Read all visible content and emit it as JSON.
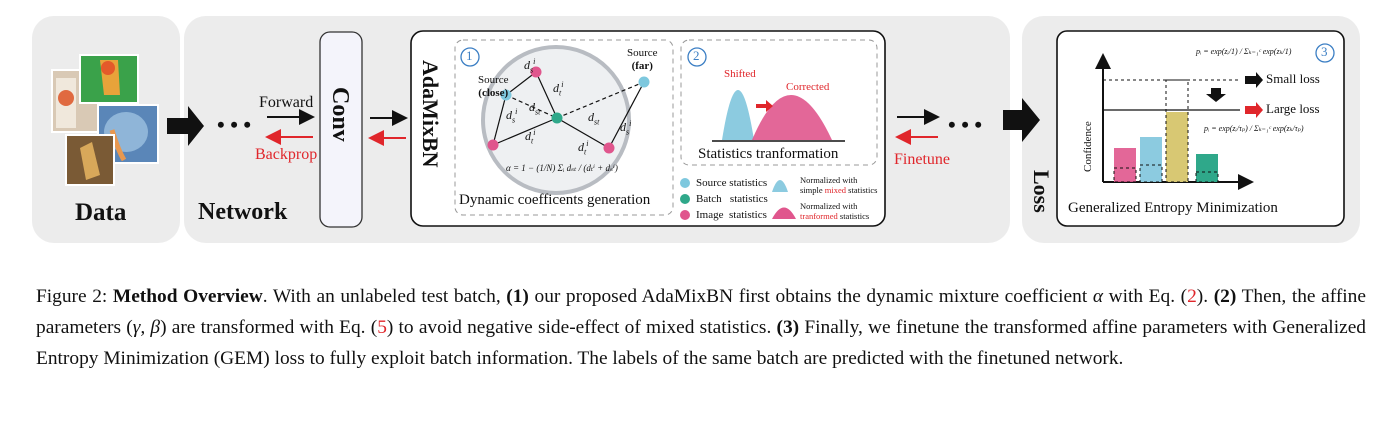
{
  "colors": {
    "panel_bg": "#ececec",
    "accent_red": "#e0262b",
    "source_blue": "#7ec8de",
    "batch_green": "#2fa88a",
    "image_pink": "#e0568d",
    "bar_yellow": "#d8c873",
    "circle_blue": "#3c7fc4"
  },
  "icons": [
    "image-stack-icon",
    "arrow-right-icon",
    "ellipsis-icon",
    "down-arrow-icon"
  ],
  "data_panel": {
    "label": "Data"
  },
  "network_panel": {
    "label": "Network",
    "forward": "Forward",
    "backprop": "Backprop",
    "conv": "Conv",
    "adamixbn": "AdaMixBN",
    "finetune": "Finetune",
    "dots": "• • •"
  },
  "dynamic": {
    "number": "1",
    "caption": "Dynamic coefficents generation",
    "source_close": [
      "Source",
      "(close)"
    ],
    "source_far": [
      "Source",
      "(far)"
    ],
    "d_s": "d",
    "d_st": "d",
    "d_t": "d",
    "formula": "α = 1 − (1/N) Σᵢ dₛₜ / (dₜⁱ + dₛⁱ)"
  },
  "statistics": {
    "number": "2",
    "shifted": "Shifted",
    "corrected": "Corrected",
    "caption": "Statistics tranformation",
    "legend": {
      "source": "Source statistics",
      "batch": "Batch   statistics",
      "image": "Image  statistics",
      "normalized_mixed": [
        "Normalized with",
        "simple ",
        "mixed",
        " statistics"
      ],
      "normalized_transformed": [
        "Normalized with",
        "tranformed",
        " statistics"
      ]
    }
  },
  "loss_panel": {
    "label": "Loss",
    "number": "3",
    "small_loss": "Small loss",
    "large_loss": "Large loss",
    "ylabel": "Confidence",
    "caption": "Generalized Entropy Minimization",
    "formula_top": "pᵢ = exp(zᵢ/1) / Σₖ₌₁ᶜ exp(zₖ/1)",
    "formula_bottom": "pᵢ = exp(zᵢ/τₚ) / Σₖ₌₁ᶜ exp(zₖ/τₚ)"
  },
  "caption": {
    "prefix": "Figure 2: ",
    "title": "Method Overview",
    "t1": ". With an unlabeled test batch, ",
    "s1": "(1)",
    "t2": " our proposed AdaMixBN first obtains the dynamic mixture coefficient ",
    "alpha": "α",
    "t3": " with Eq. (",
    "eq1": "2",
    "t4": "). ",
    "s2": "(2)",
    "t5": " Then, the affine parameters (",
    "gamma_beta": "γ, β",
    "t6": ") are transformed with Eq. (",
    "eq2": "5",
    "t7": ") to avoid negative side-effect of mixed statistics. ",
    "s3": "(3)",
    "t8": " Finally, we finetune the transformed affine parameters with Generalized Entropy Minimization (GEM) loss to fully exploit batch information. The labels of the same batch are predicted with the finetuned network."
  }
}
